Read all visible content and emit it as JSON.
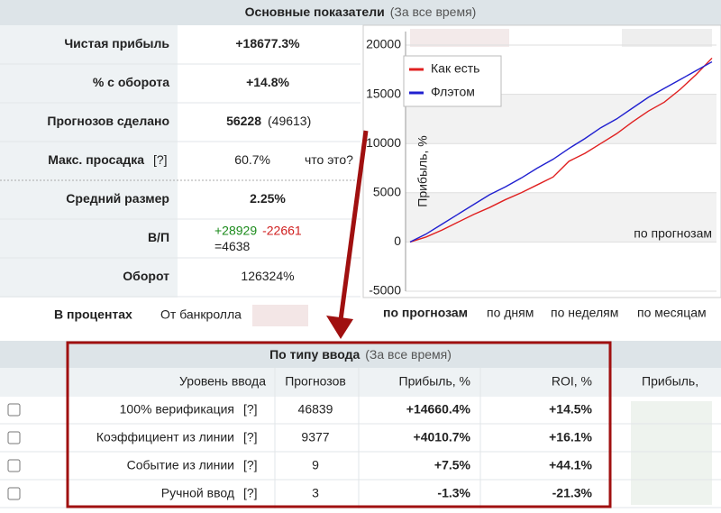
{
  "summary": {
    "title": "Основные показатели",
    "period": "(За все время)",
    "rows": [
      {
        "label": "Чистая прибыль",
        "value": "+18677.3%",
        "color": "#1a8a1a"
      },
      {
        "label": "% с оборота",
        "value": "+14.8%",
        "color": "#1a8a1a"
      },
      {
        "label": "Прогнозов сделано",
        "value": "56228",
        "extra": "(49613)"
      },
      {
        "label": "Макс. просадка",
        "help": "[?]",
        "value": "60.7%",
        "color": "#e8a020",
        "extra": "что это?"
      },
      {
        "label": "Средний размер",
        "value": "2.25%"
      },
      {
        "label": "В/П",
        "wins": "+28929",
        "losses": "-22661",
        "total": "=4638"
      },
      {
        "label": "Оборот",
        "value": "126324%"
      }
    ]
  },
  "percent_tabs": {
    "label": "В процентах",
    "option": "От банкролла"
  },
  "chart": {
    "type": "line",
    "ylabel": "Прибыль, %",
    "xlabel": "по прогнозам",
    "ylim": [
      -5000,
      20000
    ],
    "yticks": [
      -5000,
      0,
      5000,
      10000,
      15000,
      20000
    ],
    "series": [
      {
        "name": "Как есть",
        "color": "#e02020",
        "values": [
          0,
          500,
          1200,
          2000,
          2800,
          3500,
          4300,
          5000,
          5800,
          6600,
          8200,
          9000,
          10000,
          11000,
          12200,
          13300,
          14200,
          15500,
          17000,
          18677
        ]
      },
      {
        "name": "Флэтом",
        "color": "#2020d0",
        "values": [
          0,
          800,
          1800,
          2800,
          3800,
          4800,
          5600,
          6500,
          7500,
          8400,
          9500,
          10500,
          11600,
          12500,
          13600,
          14700,
          15600,
          16500,
          17400,
          18300
        ]
      }
    ]
  },
  "chart_tabs": [
    "по прогнозам",
    "по дням",
    "по неделям",
    "по месяцам"
  ],
  "input_table": {
    "title": "По типу ввода",
    "period": "(За все время)",
    "columns": [
      "Уровень ввода",
      "Прогнозов",
      "Прибыль, %",
      "ROI, %"
    ],
    "extra_column": "Прибыль,",
    "rows": [
      {
        "label": "100% верификация",
        "help": "[?]",
        "count": "46839",
        "profit": "+14660.4%",
        "roi": "+14.5%"
      },
      {
        "label": "Коэффициент из линии",
        "help": "[?]",
        "count": "9377",
        "profit": "+4010.7%",
        "roi": "+16.1%"
      },
      {
        "label": "Событие из линии",
        "help": "[?]",
        "count": "9",
        "profit": "+7.5%",
        "roi": "+44.1%"
      },
      {
        "label": "Ручной ввод",
        "help": "[?]",
        "count": "3",
        "profit": "-1.3%",
        "roi": "-21.3%"
      }
    ]
  }
}
